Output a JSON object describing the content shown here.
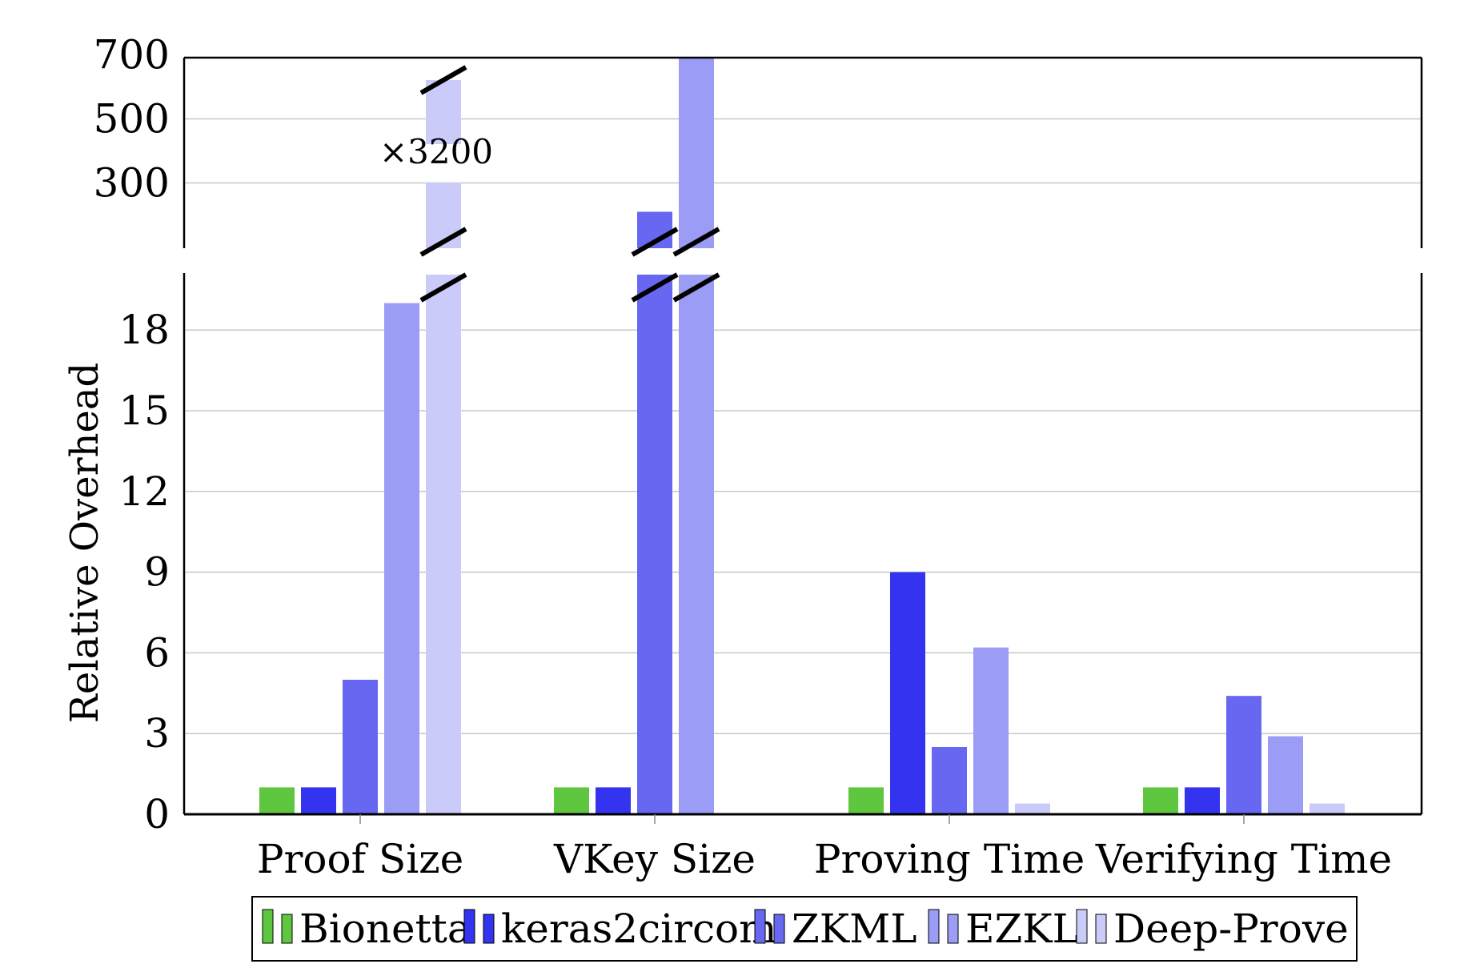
{
  "chart_data": {
    "type": "bar",
    "ylabel": "Relative Overhead",
    "categories": [
      "Proof Size",
      "VKey Size",
      "Proving Time",
      "Verifying Time"
    ],
    "series": [
      {
        "name": "Bionetta",
        "color": "#5ec73f",
        "values": [
          1,
          1,
          1,
          1
        ]
      },
      {
        "name": "keras2circom",
        "color": "#3333f0",
        "values": [
          1,
          1,
          9,
          1
        ]
      },
      {
        "name": "ZKML",
        "color": "#6767f2",
        "values": [
          5,
          210,
          2.5,
          4.4
        ]
      },
      {
        "name": "EZKL",
        "color": "#9a9cf5",
        "values": [
          19,
          690,
          6.2,
          2.9
        ]
      },
      {
        "name": "Deep-Prove",
        "color": "#cbcbfa",
        "values": [
          3200,
          null,
          0.4,
          0.4
        ]
      }
    ],
    "annotation": "×3200",
    "lower_axis": {
      "ylim": [
        0,
        20
      ],
      "ticks": [
        0,
        3,
        6,
        9,
        12,
        15,
        18
      ]
    },
    "upper_axis": {
      "ylim": [
        150,
        700
      ],
      "ticks": [
        300,
        500,
        700
      ]
    },
    "broken_axis": true,
    "grid": "horizontal",
    "legend": "bottom"
  }
}
